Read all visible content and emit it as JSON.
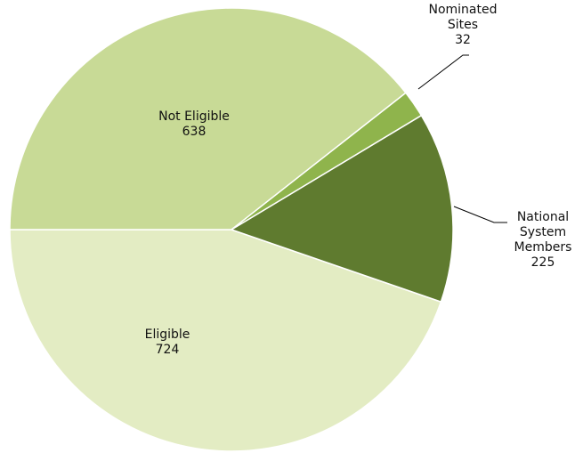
{
  "chart_data": {
    "type": "pie",
    "categories": [
      "Eligible",
      "National System Members",
      "Nominated Sites",
      "Not Eligible"
    ],
    "values": [
      724,
      225,
      32,
      638
    ],
    "colors": [
      "#e3ecc3",
      "#5f7b2f",
      "#8fb44c",
      "#c8da96"
    ]
  }
}
